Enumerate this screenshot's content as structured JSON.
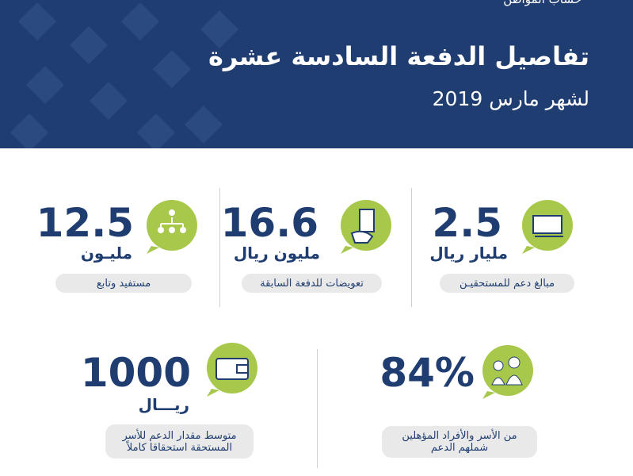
{
  "header": {
    "brand": "حساب المواطن",
    "title": "تفاصيل الدفعة السادسة عشرة",
    "subtitle": "لشهر مارس 2019"
  },
  "stats": [
    {
      "number": "2.5",
      "unit": "مليار ريال",
      "label": "مبالغ دعم للمستحقيـن"
    },
    {
      "number": "16.6",
      "unit": "مليون ريال",
      "label": "تعويضات للدفعة السابقة"
    },
    {
      "number": "12.5",
      "unit": "مليـون",
      "label": "مستفيد وتابع"
    },
    {
      "number": "84%",
      "label_lines": [
        "من الأسر والأفراد المؤهلين",
        "شملهم الدعم"
      ]
    },
    {
      "number": "1000",
      "unit": "ريـــال",
      "label_lines": [
        "متوسط مقدار الدعم للأسر",
        "المستحقة استحقاقا كاملاً"
      ]
    }
  ]
}
